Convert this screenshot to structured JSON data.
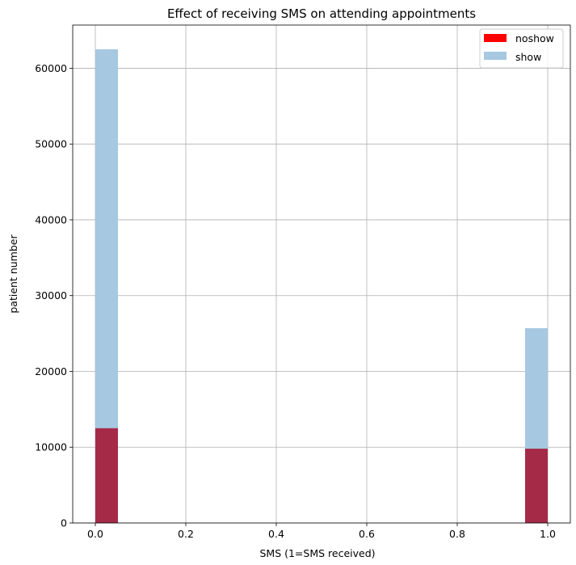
{
  "chart_data": {
    "type": "bar",
    "title": "Effect of receiving SMS  on attending appointments",
    "xlabel": "SMS (1=SMS received)",
    "ylabel": "patient number",
    "xlim": [
      -0.05,
      1.05
    ],
    "ylim": [
      0,
      65700
    ],
    "x_ticks": [
      0.0,
      0.2,
      0.4,
      0.6,
      0.8,
      1.0
    ],
    "x_tick_labels": [
      "0.0",
      "0.2",
      "0.4",
      "0.6",
      "0.8",
      "1.0"
    ],
    "y_ticks": [
      0,
      10000,
      20000,
      30000,
      40000,
      50000,
      60000
    ],
    "y_tick_labels": [
      "0",
      "10000",
      "20000",
      "30000",
      "40000",
      "50000",
      "60000"
    ],
    "grid": true,
    "legend_position": "top-right",
    "bin_width": 0.05,
    "series": [
      {
        "name": "show",
        "color": "#a6c8e0",
        "bins": [
          {
            "x0": 0.0,
            "x1": 0.05,
            "value": 62500
          },
          {
            "x0": 0.95,
            "x1": 1.0,
            "value": 25700
          }
        ]
      },
      {
        "name": "noshow",
        "color": "#ff0000",
        "overlap_color": "#a52a47",
        "bins": [
          {
            "x0": 0.0,
            "x1": 0.05,
            "value": 12500
          },
          {
            "x0": 0.95,
            "x1": 1.0,
            "value": 9800
          }
        ]
      }
    ],
    "legend_order": [
      "noshow",
      "show"
    ]
  }
}
